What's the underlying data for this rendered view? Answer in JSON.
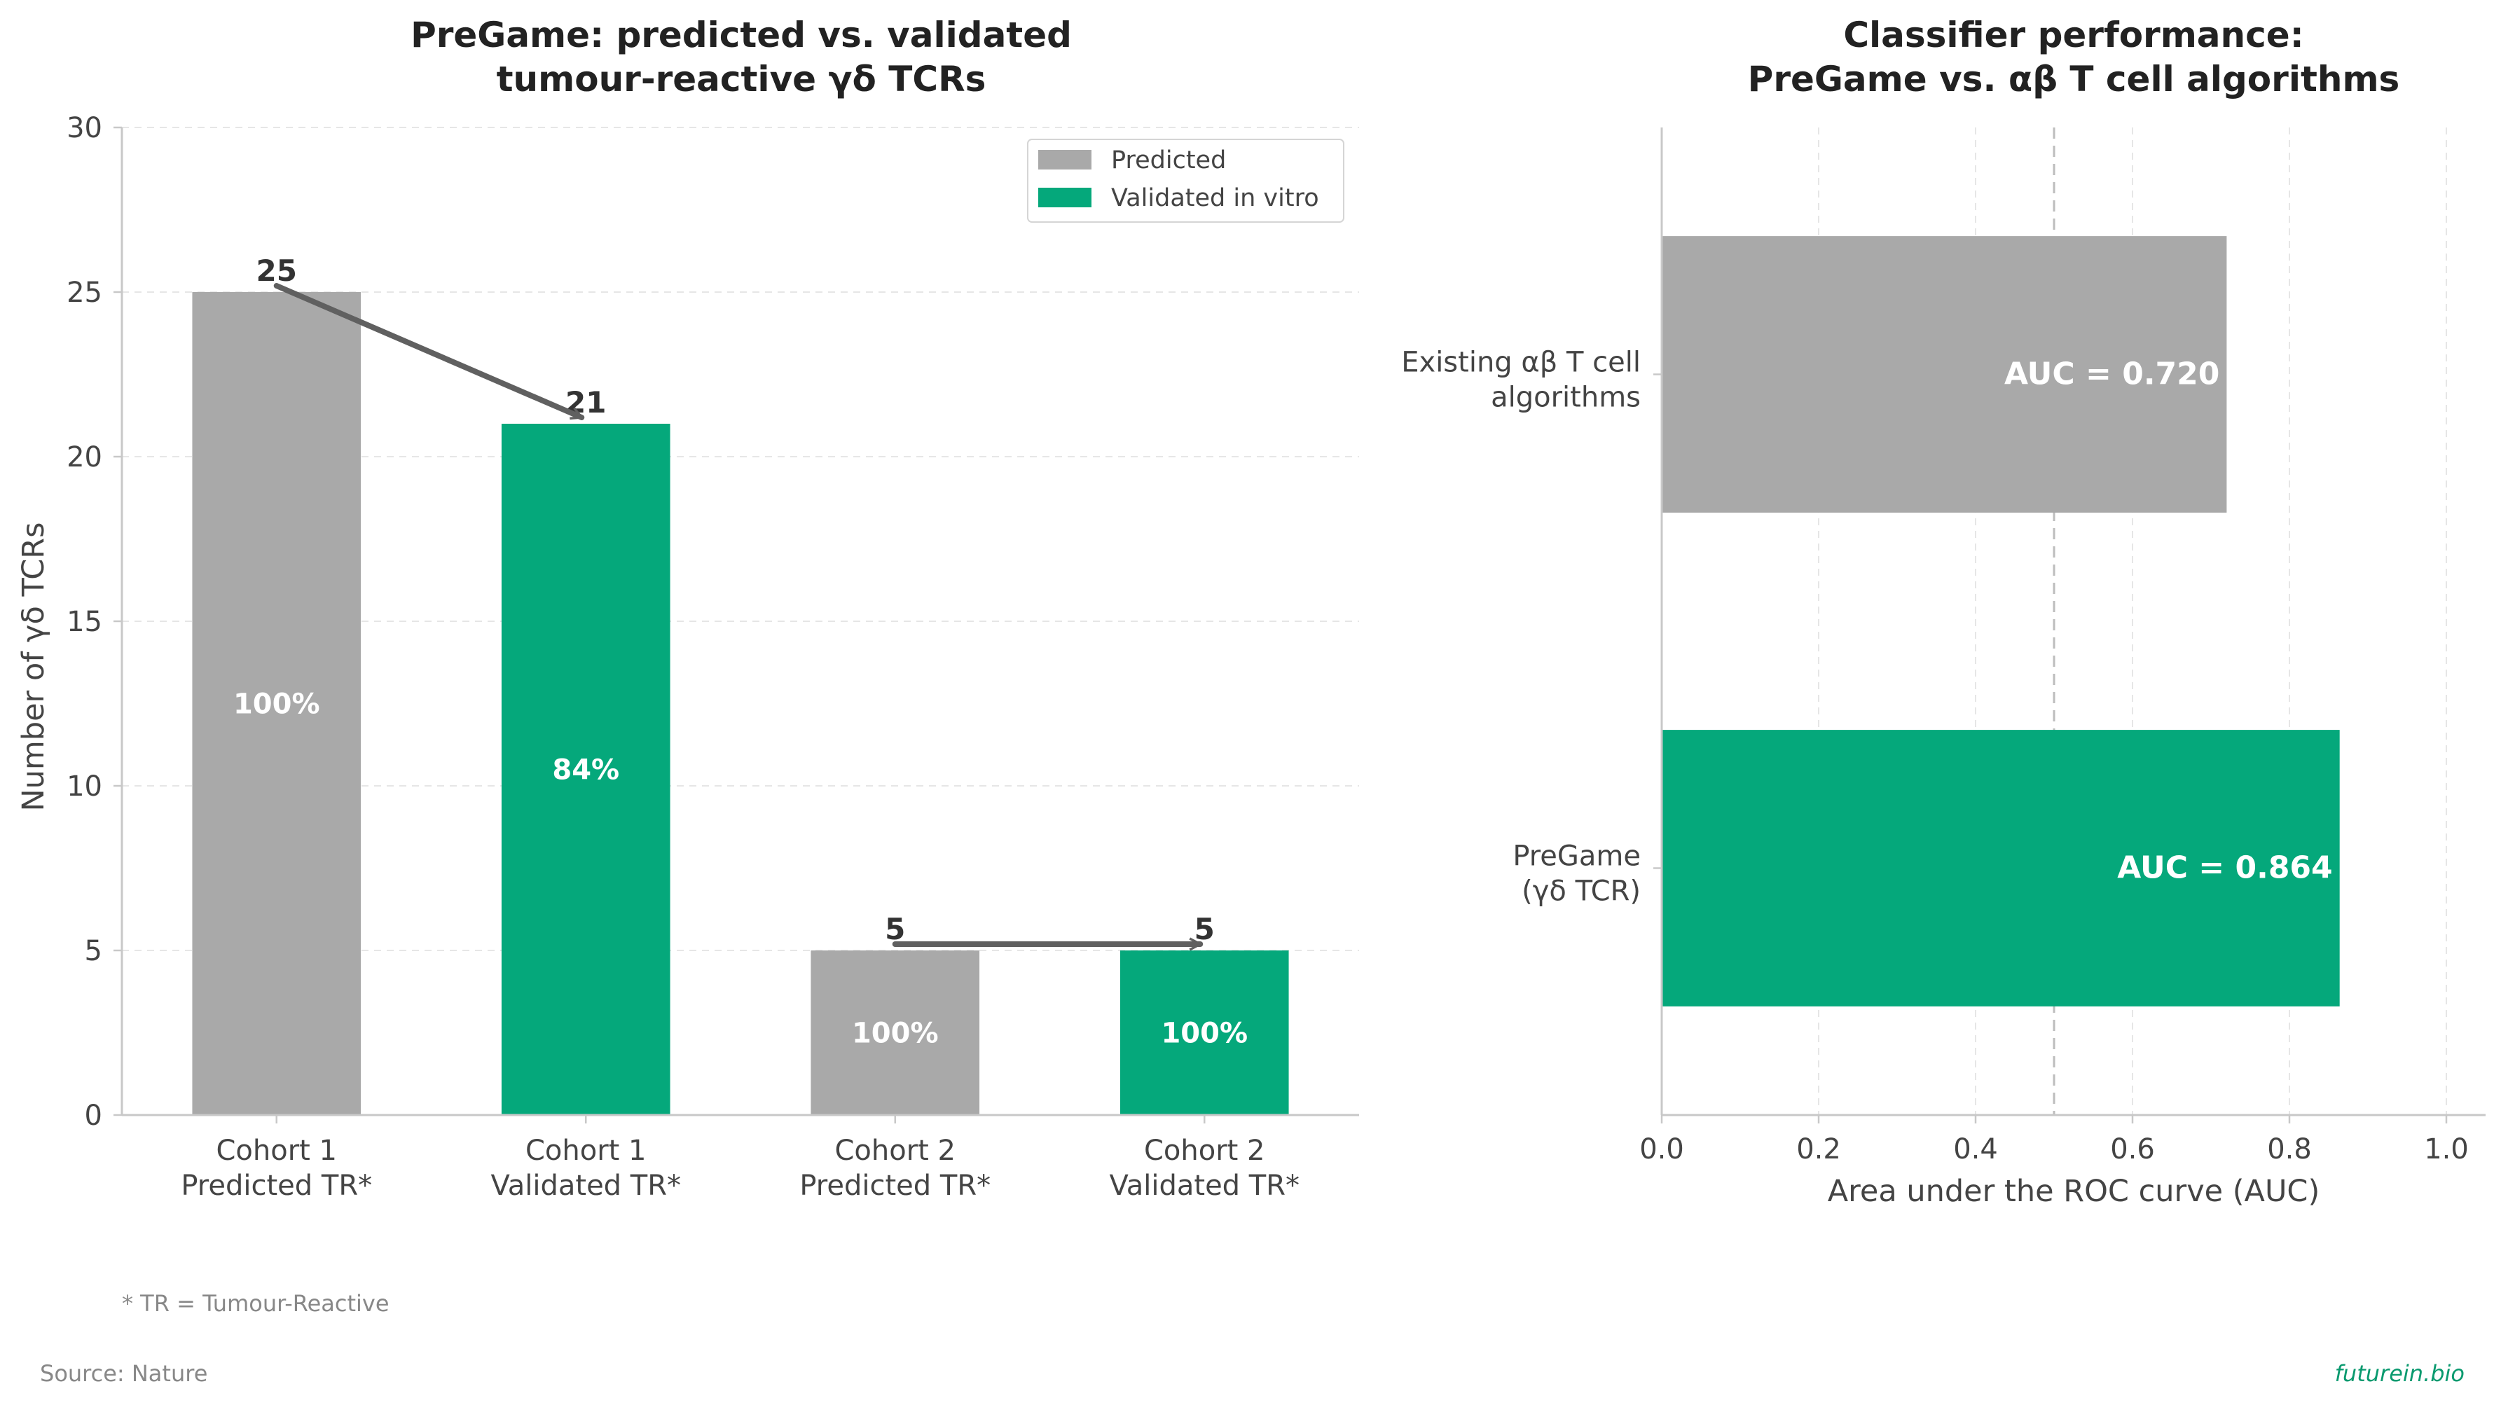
{
  "colors": {
    "predicted": "#a9a9a9",
    "validated": "#05a87b",
    "arrow": "#606060",
    "grid": "#e6e6e6",
    "axis": "#c8c8c8",
    "brand": "#0a9a6f"
  },
  "chart_data": [
    {
      "type": "bar",
      "title": [
        "PreGame: predicted vs. validated",
        "tumour-reactive γδ TCRs"
      ],
      "ylabel": "Number of γδ TCRs",
      "xlabel": "",
      "ylim": [
        0,
        30
      ],
      "yticks": [
        0,
        5,
        10,
        15,
        20,
        25,
        30
      ],
      "grid": "horizontal-dashed",
      "legend_position": "top-right",
      "legend": [
        {
          "label": "Predicted",
          "series": "predicted"
        },
        {
          "label": "Validated in vitro",
          "series": "validated"
        }
      ],
      "bars": [
        {
          "label": [
            "Cohort 1",
            "Predicted TR*"
          ],
          "value": 25,
          "series": "predicted",
          "top_label": "25",
          "inner_label": "100%"
        },
        {
          "label": [
            "Cohort 1",
            "Validated TR*"
          ],
          "value": 21,
          "series": "validated",
          "top_label": "21",
          "inner_label": "84%"
        },
        {
          "label": [
            "Cohort 2",
            "Predicted TR*"
          ],
          "value": 5,
          "series": "predicted",
          "top_label": "5",
          "inner_label": "100%"
        },
        {
          "label": [
            "Cohort 2",
            "Validated TR*"
          ],
          "value": 5,
          "series": "validated",
          "top_label": "5",
          "inner_label": "100%"
        }
      ],
      "arrows": [
        {
          "from_bar": 0,
          "to_bar": 1
        },
        {
          "from_bar": 2,
          "to_bar": 3
        }
      ],
      "footnote": "* TR = Tumour-Reactive"
    },
    {
      "type": "bar",
      "orientation": "horizontal",
      "title": [
        "Classifier performance:",
        "PreGame vs. αβ T cell algorithms"
      ],
      "xlabel": "Area under the ROC curve (AUC)",
      "ylabel": "",
      "xlim": [
        0,
        1.05
      ],
      "xticks": [
        0,
        0.2,
        0.4,
        0.6,
        0.8,
        1.0
      ],
      "xtick_labels": [
        "0.0",
        "0.2",
        "0.4",
        "0.6",
        "0.8",
        "1.0"
      ],
      "reference_line": 0.5,
      "grid": "vertical-dashed",
      "bars": [
        {
          "label": [
            "Existing αβ T cell",
            "algorithms"
          ],
          "value": 0.72,
          "series": "predicted",
          "inner_label": "AUC = 0.720"
        },
        {
          "label": [
            "PreGame",
            "(γδ TCR)"
          ],
          "value": 0.864,
          "series": "validated",
          "inner_label": "AUC = 0.864"
        }
      ]
    }
  ],
  "footer": {
    "source": "Source: Nature",
    "brand": "futurein.bio"
  }
}
